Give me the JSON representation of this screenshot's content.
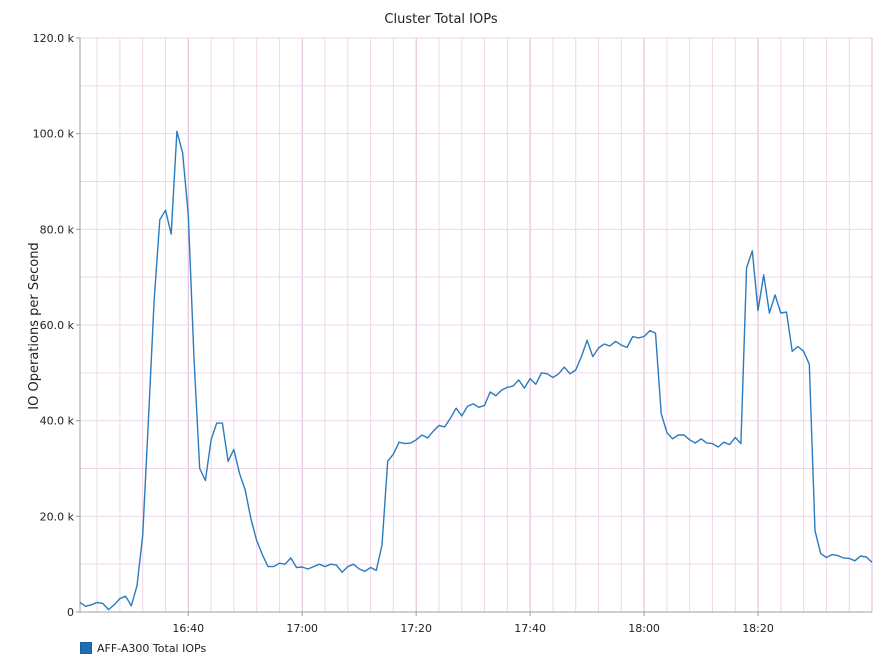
{
  "chart_data": {
    "type": "line",
    "title": "Cluster Total IOPs",
    "xlabel": "",
    "ylabel": "IO Operations per Second",
    "ylim": [
      0,
      120000
    ],
    "y_ticks": [
      {
        "value": 0,
        "label": "0"
      },
      {
        "value": 20000,
        "label": "20.0 k"
      },
      {
        "value": 40000,
        "label": "40.0 k"
      },
      {
        "value": 60000,
        "label": "60.0 k"
      },
      {
        "value": 80000,
        "label": "80.0 k"
      },
      {
        "value": 100000,
        "label": "100.0 k"
      },
      {
        "value": 120000,
        "label": "120.0 k"
      }
    ],
    "x_unit": "minutes after 16:21",
    "xlim": [
      0,
      139
    ],
    "x_ticks": [
      {
        "value": 19,
        "label": "16:40"
      },
      {
        "value": 39,
        "label": "17:00"
      },
      {
        "value": 59,
        "label": "17:20"
      },
      {
        "value": 79,
        "label": "17:40"
      },
      {
        "value": 99,
        "label": "18:00"
      },
      {
        "value": 119,
        "label": "18:20"
      }
    ],
    "grid": true,
    "legend_position": "bottom-left",
    "colors": {
      "line": "#2b7bbf",
      "grid": "#f1d6ea",
      "grid_major": "#e2b6d6",
      "axis": "#9aa0a6"
    },
    "series": [
      {
        "name": "AFF-A300 Total IOPs",
        "values": [
          2000,
          1200,
          1500,
          2000,
          1800,
          500,
          1500,
          2800,
          3300,
          1300,
          5500,
          16000,
          40000,
          65000,
          82000,
          84000,
          79000,
          100500,
          96000,
          83000,
          53000,
          30000,
          27500,
          36000,
          39500,
          39500,
          31500,
          34000,
          29000,
          25500,
          19500,
          15000,
          12000,
          9500,
          9500,
          10200,
          10000,
          11300,
          9300,
          9400,
          9000,
          9500,
          10000,
          9500,
          10000,
          9800,
          8300,
          9500,
          10000,
          9000,
          8500,
          9300,
          8700,
          14000,
          31500,
          33000,
          35500,
          35200,
          35300,
          36000,
          37000,
          36400,
          37800,
          39000,
          38700,
          40500,
          42600,
          41000,
          43000,
          43500,
          42800,
          43200,
          46000,
          45200,
          46400,
          47000,
          47200,
          48500,
          46800,
          48800,
          47600,
          50000,
          49800,
          49000,
          49800,
          51200,
          49800,
          50600,
          53400,
          56800,
          53400,
          55200,
          56000,
          55600,
          56600,
          55800,
          55300,
          57600,
          57300,
          57600,
          58800,
          58300,
          41500,
          37500,
          36200,
          37000,
          37000,
          36000,
          35300,
          36200,
          35300,
          35200,
          34500,
          35500,
          35000,
          36500,
          35200,
          72000,
          75500,
          63000,
          70500,
          62500,
          66300,
          62500,
          62700,
          54500,
          55500,
          54500,
          51800,
          17000,
          12200,
          11400,
          12000,
          11800,
          11300,
          11200,
          10700,
          11700,
          11500,
          10400
        ]
      }
    ]
  }
}
